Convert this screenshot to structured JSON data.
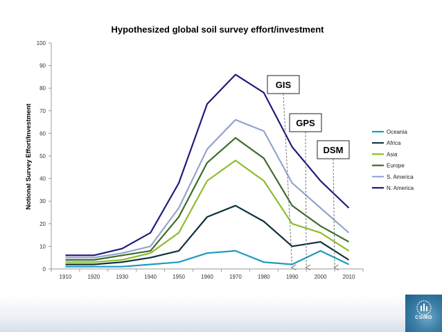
{
  "chart_data": {
    "type": "line",
    "title": "Hypothesized global soil survey effort/investment",
    "xlabel": "",
    "ylabel": "Notional Survey Effort/Investment",
    "x": [
      1910,
      1920,
      1930,
      1940,
      1950,
      1960,
      1970,
      1980,
      1990,
      2000,
      2010
    ],
    "xticks": [
      "1910",
      "1920",
      "1930",
      "1940",
      "1950",
      "1960",
      "1970",
      "1980",
      "1990",
      "2000",
      "2010"
    ],
    "yticks": [
      "0",
      "10",
      "20",
      "30",
      "40",
      "50",
      "60",
      "70",
      "80",
      "90",
      "100"
    ],
    "ylim": [
      0,
      100
    ],
    "legend_position": "right",
    "series": [
      {
        "name": "Oceania",
        "color": "#1d9ac2",
        "values": [
          1,
          1,
          1,
          2,
          3,
          7,
          8,
          3,
          2,
          8,
          2
        ]
      },
      {
        "name": "Africa",
        "color": "#0e2f3e",
        "values": [
          2,
          2,
          3,
          5,
          8,
          23,
          28,
          21,
          10,
          12,
          4
        ]
      },
      {
        "name": "Asia",
        "color": "#8cbd2c",
        "values": [
          3,
          3,
          4,
          7,
          16,
          39,
          48,
          39,
          20,
          16,
          8
        ]
      },
      {
        "name": "Europe",
        "color": "#3d6b2a",
        "values": [
          4,
          4,
          6,
          8,
          23,
          47,
          58,
          49,
          28,
          19,
          12
        ]
      },
      {
        "name": "S. America",
        "color": "#93a4cc",
        "values": [
          5,
          5,
          7,
          10,
          27,
          53,
          66,
          61,
          38,
          27,
          16
        ]
      },
      {
        "name": "N. America",
        "color": "#1c1c7c",
        "values": [
          6,
          6,
          9,
          16,
          38,
          73,
          86,
          78,
          54,
          39,
          27
        ]
      }
    ],
    "annotations": [
      {
        "label": "GIS",
        "x": 1990
      },
      {
        "label": "GPS",
        "x": 1995
      },
      {
        "label": "DSM",
        "x": 2005
      }
    ]
  },
  "logo": {
    "text": "CSIRO"
  }
}
